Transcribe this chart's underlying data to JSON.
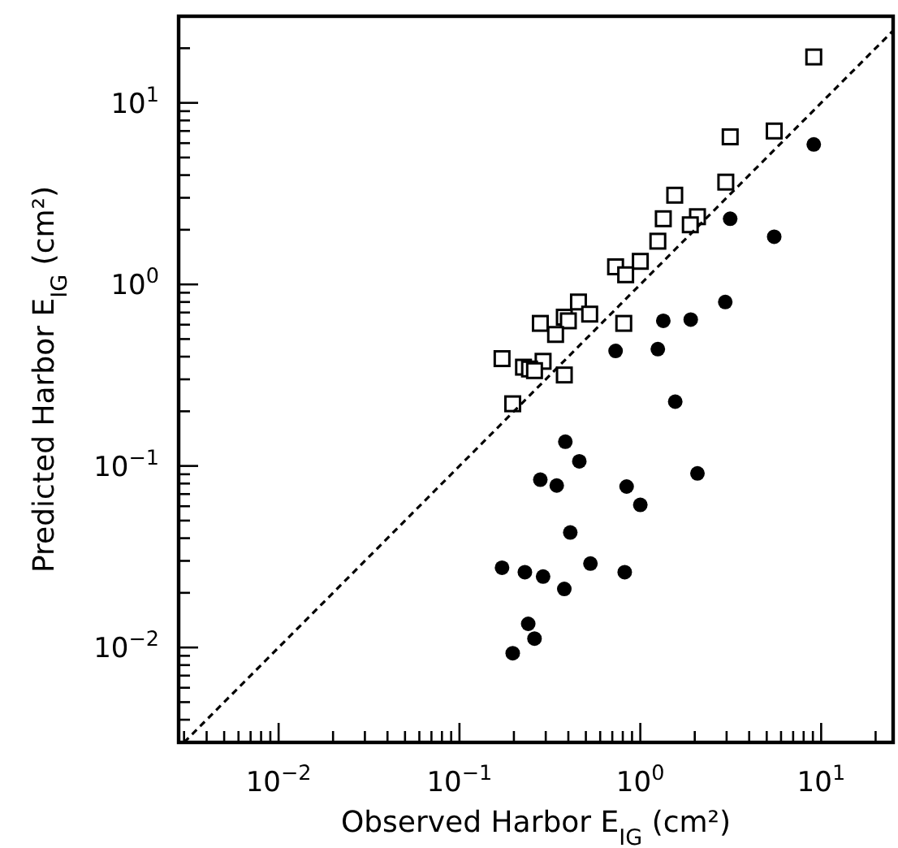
{
  "chart_data": {
    "type": "scatter",
    "xlabel": "Observed Harbor E$_{IG}$ (cm²)",
    "ylabel": "Predicted Harbor E$_{IG}$ (cm²)",
    "log": "xy",
    "grid": false,
    "xlim": [
      0.0028,
      25
    ],
    "ylim": [
      0.003,
      30
    ],
    "xticks": [
      {
        "value": 0.003,
        "label": null
      },
      {
        "value": 0.004,
        "label": null
      },
      {
        "value": 0.005,
        "label": null
      },
      {
        "value": 0.006,
        "label": null
      },
      {
        "value": 0.007,
        "label": null
      },
      {
        "value": 0.008,
        "label": null
      },
      {
        "value": 0.009,
        "label": null
      },
      {
        "value": 0.01,
        "label": "10$^{−2}$"
      },
      {
        "value": 0.02,
        "label": null
      },
      {
        "value": 0.03,
        "label": null
      },
      {
        "value": 0.04,
        "label": null
      },
      {
        "value": 0.05,
        "label": null
      },
      {
        "value": 0.06,
        "label": null
      },
      {
        "value": 0.07,
        "label": null
      },
      {
        "value": 0.08,
        "label": null
      },
      {
        "value": 0.09,
        "label": null
      },
      {
        "value": 0.1,
        "label": "10$^{−1}$"
      },
      {
        "value": 0.2,
        "label": null
      },
      {
        "value": 0.3,
        "label": null
      },
      {
        "value": 0.4,
        "label": null
      },
      {
        "value": 0.5,
        "label": null
      },
      {
        "value": 0.6,
        "label": null
      },
      {
        "value": 0.7,
        "label": null
      },
      {
        "value": 0.8,
        "label": null
      },
      {
        "value": 0.9,
        "label": null
      },
      {
        "value": 1,
        "label": "10$^{0}$"
      },
      {
        "value": 2,
        "label": null
      },
      {
        "value": 3,
        "label": null
      },
      {
        "value": 4,
        "label": null
      },
      {
        "value": 5,
        "label": null
      },
      {
        "value": 6,
        "label": null
      },
      {
        "value": 7,
        "label": null
      },
      {
        "value": 8,
        "label": null
      },
      {
        "value": 9,
        "label": null
      },
      {
        "value": 10,
        "label": "10$^{1}$"
      },
      {
        "value": 20,
        "label": null
      }
    ],
    "yticks": [
      {
        "value": 0.004,
        "label": null
      },
      {
        "value": 0.005,
        "label": null
      },
      {
        "value": 0.006,
        "label": null
      },
      {
        "value": 0.007,
        "label": null
      },
      {
        "value": 0.008,
        "label": null
      },
      {
        "value": 0.009,
        "label": null
      },
      {
        "value": 0.01,
        "label": "10$^{−2}$"
      },
      {
        "value": 0.02,
        "label": null
      },
      {
        "value": 0.03,
        "label": null
      },
      {
        "value": 0.04,
        "label": null
      },
      {
        "value": 0.05,
        "label": null
      },
      {
        "value": 0.06,
        "label": null
      },
      {
        "value": 0.07,
        "label": null
      },
      {
        "value": 0.08,
        "label": null
      },
      {
        "value": 0.09,
        "label": null
      },
      {
        "value": 0.1,
        "label": "10$^{−1}$"
      },
      {
        "value": 0.2,
        "label": null
      },
      {
        "value": 0.3,
        "label": null
      },
      {
        "value": 0.4,
        "label": null
      },
      {
        "value": 0.5,
        "label": null
      },
      {
        "value": 0.6,
        "label": null
      },
      {
        "value": 0.7,
        "label": null
      },
      {
        "value": 0.8,
        "label": null
      },
      {
        "value": 0.9,
        "label": null
      },
      {
        "value": 1,
        "label": "10$^{0}$"
      },
      {
        "value": 2,
        "label": null
      },
      {
        "value": 3,
        "label": null
      },
      {
        "value": 4,
        "label": null
      },
      {
        "value": 5,
        "label": null
      },
      {
        "value": 6,
        "label": null
      },
      {
        "value": 7,
        "label": null
      },
      {
        "value": 8,
        "label": null
      },
      {
        "value": 9,
        "label": null
      },
      {
        "value": 10,
        "label": "10$^{1}$"
      },
      {
        "value": 20,
        "label": null
      }
    ],
    "series": [
      {
        "marker": "square",
        "color": "#000000",
        "x": [
          9.1,
          3.14,
          5.5,
          2.97,
          1.55,
          1.34,
          2.07,
          1.89,
          1.25,
          1.0,
          0.73,
          0.83,
          0.455,
          0.525,
          0.38,
          0.4,
          0.28,
          0.81,
          0.34,
          0.172,
          0.29,
          0.226,
          0.244,
          0.26,
          0.38,
          0.197
        ],
        "values": [
          17.9,
          6.5,
          7.0,
          3.66,
          3.1,
          2.3,
          2.36,
          2.13,
          1.73,
          1.34,
          1.25,
          1.13,
          0.8,
          0.686,
          0.66,
          0.63,
          0.61,
          0.61,
          0.53,
          0.39,
          0.377,
          0.35,
          0.342,
          0.335,
          0.317,
          0.22
        ]
      },
      {
        "marker": "circle",
        "color": "#000000",
        "x": [
          9.1,
          3.14,
          5.5,
          2.95,
          1.34,
          1.9,
          0.73,
          1.25,
          1.56,
          0.385,
          0.46,
          2.07,
          0.28,
          0.345,
          0.84,
          1.0,
          0.41,
          0.53,
          0.172,
          0.23,
          0.29,
          0.82,
          0.38,
          0.24,
          0.26,
          0.197
        ],
        "values": [
          5.9,
          2.3,
          1.83,
          0.8,
          0.63,
          0.64,
          0.43,
          0.44,
          0.226,
          0.136,
          0.106,
          0.091,
          0.084,
          0.078,
          0.077,
          0.061,
          0.043,
          0.029,
          0.0275,
          0.026,
          0.0246,
          0.026,
          0.021,
          0.0135,
          0.0112,
          0.0093
        ]
      },
      {
        "type": "line",
        "marker": "none",
        "line_style": "dashed",
        "color": "#000000",
        "x": [
          0.003,
          25
        ],
        "values": [
          0.003,
          25
        ]
      }
    ]
  }
}
